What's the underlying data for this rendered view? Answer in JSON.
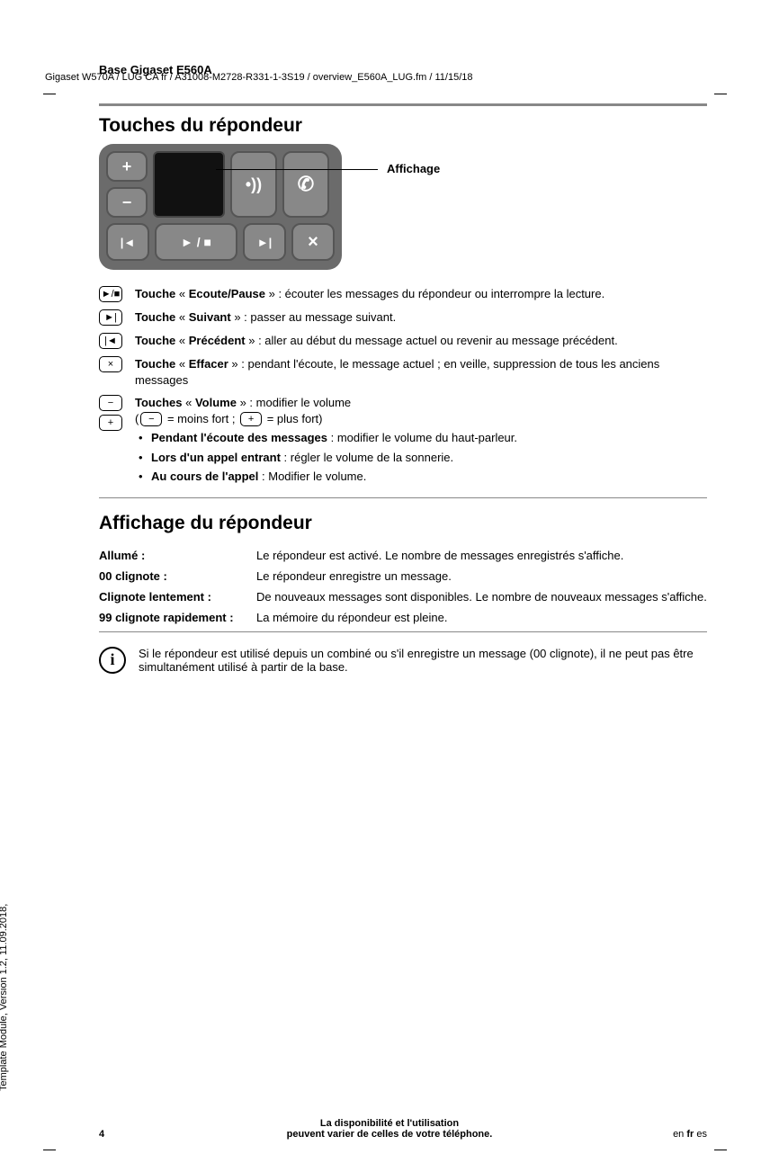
{
  "meta": {
    "header_line": "Gigaset W570A / LUG CA fr / A31008-M2728-R331-1-3S19 / overview_E560A_LUG.fm / 11/15/18",
    "side_text": "Template Module, Version 1.2, 11.09.2018,",
    "section_label": "Base Gigaset E560A"
  },
  "section1": {
    "title": "Touches du répondeur",
    "callout": "Affichage"
  },
  "device_keys": {
    "plus": "+",
    "minus": "−",
    "speaker": "•))",
    "phone": "✆",
    "prev": "|◄",
    "play": "► / ■",
    "next": "►|",
    "close": "×"
  },
  "keylist": [
    {
      "icons": [
        "►/■"
      ],
      "html": "<span class='bold'>Touche</span> « <span class='bold'>Ecoute/Pause</span> » : écouter les messages du répondeur ou interrompre la lecture."
    },
    {
      "icons": [
        "►|"
      ],
      "html": "<span class='bold'>Touche</span> « <span class='bold'>Suivant</span> » : passer au message suivant."
    },
    {
      "icons": [
        "|◄"
      ],
      "html": "<span class='bold'>Touche</span> « <span class='bold'>Précédent</span> » : aller au début du message actuel ou revenir au message précédent."
    },
    {
      "icons": [
        "×"
      ],
      "html": "<span class='bold'>Touche</span> « <span class='bold'>Effacer</span> » : pendant l'écoute, le message actuel ; en veille, suppression de tous les anciens messages"
    }
  ],
  "volume": {
    "icons": [
      "−",
      "+"
    ],
    "line1": "<span class='bold'>Touches</span> « <span class='bold'>Volume</span> » : modifier le volume",
    "line2_pre": "(",
    "line2_minus": "−",
    "line2_mid": " = moins fort ; ",
    "line2_plus": "+",
    "line2_post": " = plus fort)",
    "bullets": [
      "<span class='bold'>Pendant l'écoute des messages</span> : modifier le volume du haut-parleur.",
      "<span class='bold'>Lors d'un appel entrant</span> : régler le volume de la sonnerie.",
      "<span class='bold'>Au cours de l'appel</span> : Modifier le volume."
    ]
  },
  "section2": {
    "title": "Affichage du répondeur",
    "rows": [
      {
        "label": "Allumé :",
        "val": "Le répondeur est activé. Le nombre de messages enregistrés s'affiche."
      },
      {
        "label": "00 clignote :",
        "val": "Le répondeur enregistre un message."
      },
      {
        "label": "Clignote lentement :",
        "val": "De nouveaux messages sont disponibles. Le nombre de nouveaux messages s'affiche."
      },
      {
        "label": "99 clignote rapidement :",
        "val": "La mémoire du répondeur est pleine."
      }
    ],
    "info": "Si le répondeur est utilisé depuis un combiné ou s'il enregistre un message (00 clignote), il ne peut pas être simultanément utilisé à partir de la base."
  },
  "footer": {
    "page": "4",
    "center": "La disponibilité et l'utilisation\npeuvent varier de celles de votre téléphone.",
    "langs": {
      "a": "en ",
      "b": "fr",
      "c": " es"
    }
  }
}
